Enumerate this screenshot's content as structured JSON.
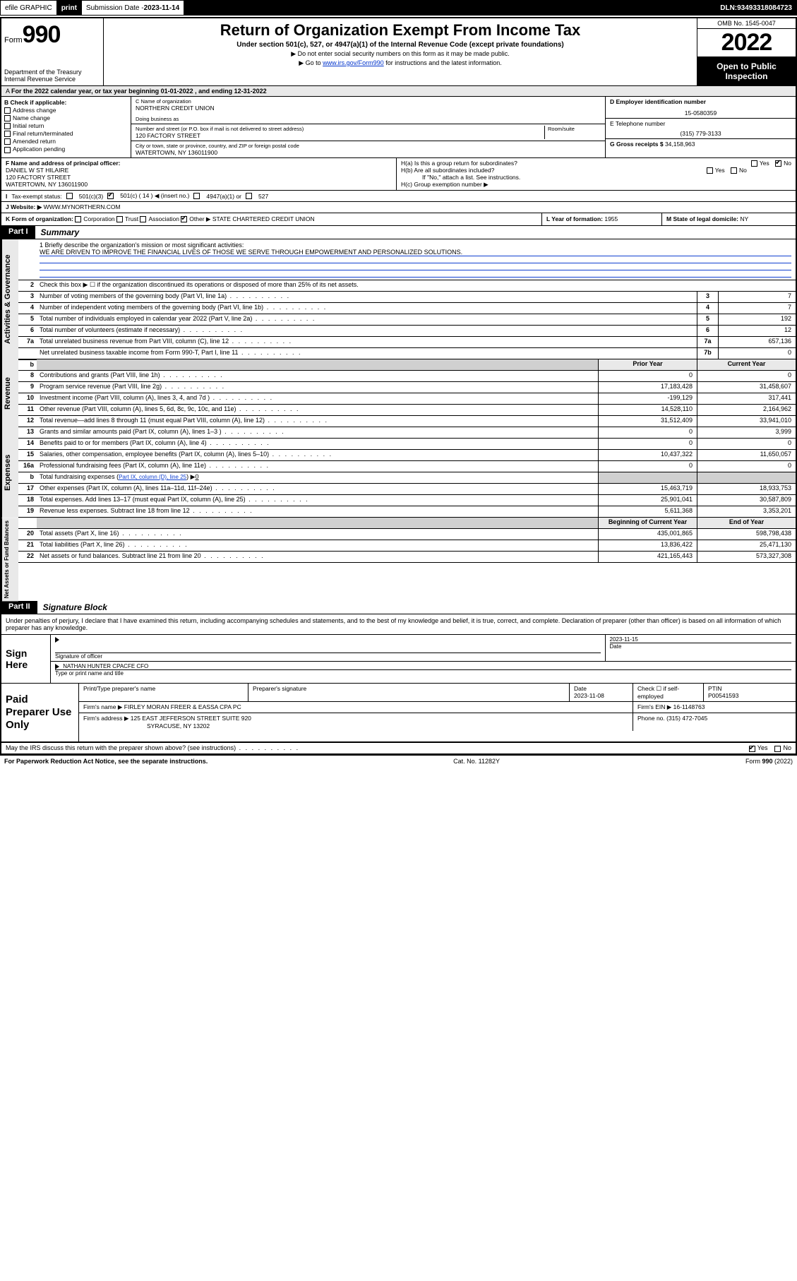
{
  "topbar": {
    "efile": "efile GRAPHIC",
    "print": "print",
    "sub_label": "Submission Date - ",
    "sub_date": "2023-11-14",
    "dln_label": "DLN: ",
    "dln": "93493318084723"
  },
  "header": {
    "form_word": "Form",
    "form_num": "990",
    "dept": "Department of the Treasury",
    "irs": "Internal Revenue Service",
    "title": "Return of Organization Exempt From Income Tax",
    "subtitle": "Under section 501(c), 527, or 4947(a)(1) of the Internal Revenue Code (except private foundations)",
    "note1": "▶ Do not enter social security numbers on this form as it may be made public.",
    "note2_pre": "▶ Go to ",
    "note2_link": "www.irs.gov/Form990",
    "note2_post": " for instructions and the latest information.",
    "omb": "OMB No. 1545-0047",
    "year": "2022",
    "open": "Open to Public Inspection"
  },
  "line_a": "For the 2022 calendar year, or tax year beginning 01-01-2022    , and ending 12-31-2022",
  "col_b": {
    "label": "B Check if applicable:",
    "opts": [
      "Address change",
      "Name change",
      "Initial return",
      "Final return/terminated",
      "Amended return",
      "Application pending"
    ]
  },
  "col_c": {
    "name_hint": "C Name of organization",
    "name": "NORTHERN CREDIT UNION",
    "dba_hint": "Doing business as",
    "addr_hint": "Number and street (or P.O. box if mail is not delivered to street address)",
    "room_hint": "Room/suite",
    "addr": "120 FACTORY STREET",
    "city_hint": "City or town, state or province, country, and ZIP or foreign postal code",
    "city": "WATERTOWN, NY  136011900"
  },
  "col_def": {
    "d_label": "D Employer identification number",
    "d_val": "15-0580359",
    "e_label": "E Telephone number",
    "e_val": "(315) 779-3133",
    "g_label": "G Gross receipts $ ",
    "g_val": "34,158,963"
  },
  "fgh": {
    "f_label": "F  Name and address of principal officer:",
    "f_name": "DANIEL W ST HILAIRE",
    "f_addr1": "120 FACTORY STREET",
    "f_addr2": "WATERTOWN, NY  136011900",
    "ha": "H(a)  Is this a group return for subordinates?",
    "hb": "H(b)  Are all subordinates included?",
    "hb_note": "If \"No,\" attach a list. See instructions.",
    "hc": "H(c)  Group exemption number ▶",
    "yes": "Yes",
    "no": "No"
  },
  "row_i": {
    "label": "Tax-exempt status:",
    "o1": "501(c)(3)",
    "o2a": "501(c) ( 14 ) ◀ (insert no.)",
    "o3": "4947(a)(1) or",
    "o4": "527"
  },
  "row_j": {
    "label": "J   Website: ▶",
    "val": "WWW.MYNORTHERN.COM"
  },
  "row_k": {
    "k_label": "K Form of organization:",
    "corp": "Corporation",
    "trust": "Trust",
    "assoc": "Association",
    "other": "Other ▶",
    "other_val": "STATE CHARTERED CREDIT UNION",
    "l": "L Year of formation: ",
    "l_val": "1955",
    "m": "M State of legal domicile: ",
    "m_val": "NY"
  },
  "part1": {
    "tag": "Part I",
    "title": "Summary"
  },
  "mission": {
    "prompt": "1  Briefly describe the organization's mission or most significant activities:",
    "text": "WE ARE DRIVEN TO IMPROVE THE FINANCIAL LIVES OF THOSE WE SERVE THROUGH EMPOWERMENT AND PERSONALIZED SOLUTIONS."
  },
  "gov_lines": [
    {
      "n": "2",
      "t": "Check this box ▶ ☐  if the organization discontinued its operations or disposed of more than 25% of its net assets.",
      "box": "",
      "val": ""
    },
    {
      "n": "3",
      "t": "Number of voting members of the governing body (Part VI, line 1a)",
      "box": "3",
      "val": "7"
    },
    {
      "n": "4",
      "t": "Number of independent voting members of the governing body (Part VI, line 1b)",
      "box": "4",
      "val": "7"
    },
    {
      "n": "5",
      "t": "Total number of individuals employed in calendar year 2022 (Part V, line 2a)",
      "box": "5",
      "val": "192"
    },
    {
      "n": "6",
      "t": "Total number of volunteers (estimate if necessary)",
      "box": "6",
      "val": "12"
    },
    {
      "n": "7a",
      "t": "Total unrelated business revenue from Part VIII, column (C), line 12",
      "box": "7a",
      "val": "657,136"
    },
    {
      "n": "",
      "t": "Net unrelated business taxable income from Form 990-T, Part I, line 11",
      "box": "7b",
      "val": "0"
    }
  ],
  "py_hdr": {
    "prior": "Prior Year",
    "curr": "Current Year"
  },
  "rev_lines": [
    {
      "n": "8",
      "t": "Contributions and grants (Part VIII, line 1h)",
      "p": "0",
      "c": "0"
    },
    {
      "n": "9",
      "t": "Program service revenue (Part VIII, line 2g)",
      "p": "17,183,428",
      "c": "31,458,607"
    },
    {
      "n": "10",
      "t": "Investment income (Part VIII, column (A), lines 3, 4, and 7d )",
      "p": "-199,129",
      "c": "317,441"
    },
    {
      "n": "11",
      "t": "Other revenue (Part VIII, column (A), lines 5, 6d, 8c, 9c, 10c, and 11e)",
      "p": "14,528,110",
      "c": "2,164,962"
    },
    {
      "n": "12",
      "t": "Total revenue—add lines 8 through 11 (must equal Part VIII, column (A), line 12)",
      "p": "31,512,409",
      "c": "33,941,010"
    }
  ],
  "exp_lines": [
    {
      "n": "13",
      "t": "Grants and similar amounts paid (Part IX, column (A), lines 1–3 )",
      "p": "0",
      "c": "3,999"
    },
    {
      "n": "14",
      "t": "Benefits paid to or for members (Part IX, column (A), line 4)",
      "p": "0",
      "c": "0"
    },
    {
      "n": "15",
      "t": "Salaries, other compensation, employee benefits (Part IX, column (A), lines 5–10)",
      "p": "10,437,322",
      "c": "11,650,057"
    },
    {
      "n": "16a",
      "t": "Professional fundraising fees (Part IX, column (A), line 11e)",
      "p": "0",
      "c": "0"
    },
    {
      "n": "b",
      "t": "Total fundraising expenses (Part IX, column (D), line 25) ▶0",
      "p": "",
      "c": "",
      "grey": true,
      "link": true
    },
    {
      "n": "17",
      "t": "Other expenses (Part IX, column (A), lines 11a–11d, 11f–24e)",
      "p": "15,463,719",
      "c": "18,933,753"
    },
    {
      "n": "18",
      "t": "Total expenses. Add lines 13–17 (must equal Part IX, column (A), line 25)",
      "p": "25,901,041",
      "c": "30,587,809"
    },
    {
      "n": "19",
      "t": "Revenue less expenses. Subtract line 18 from line 12",
      "p": "5,611,368",
      "c": "3,353,201"
    }
  ],
  "na_hdr": {
    "beg": "Beginning of Current Year",
    "end": "End of Year"
  },
  "na_lines": [
    {
      "n": "20",
      "t": "Total assets (Part X, line 16)",
      "p": "435,001,865",
      "c": "598,798,438"
    },
    {
      "n": "21",
      "t": "Total liabilities (Part X, line 26)",
      "p": "13,836,422",
      "c": "25,471,130"
    },
    {
      "n": "22",
      "t": "Net assets or fund balances. Subtract line 21 from line 20",
      "p": "421,165,443",
      "c": "573,327,308"
    }
  ],
  "vtabs": {
    "gov": "Activities & Governance",
    "rev": "Revenue",
    "exp": "Expenses",
    "na": "Net Assets or Fund Balances"
  },
  "part2": {
    "tag": "Part II",
    "title": "Signature Block"
  },
  "sig_text": "Under penalties of perjury, I declare that I have examined this return, including accompanying schedules and statements, and to the best of my knowledge and belief, it is true, correct, and complete. Declaration of preparer (other than officer) is based on all information of which preparer has any knowledge.",
  "sign": {
    "label": "Sign Here",
    "sig_of": "Signature of officer",
    "date_lbl": "Date",
    "date": "2023-11-15",
    "name": "NATHAN HUNTER CPACFE  CFO",
    "name_hint": "Type or print name and title"
  },
  "paid": {
    "label": "Paid Preparer Use Only",
    "h1": "Print/Type preparer's name",
    "h2": "Preparer's signature",
    "h3": "Date",
    "h3v": "2023-11-08",
    "h4": "Check ☐ if self-employed",
    "h5": "PTIN",
    "h5v": "P00541593",
    "firm_lbl": "Firm's name      ▶",
    "firm": "FIRLEY MORAN FREER & EASSA CPA PC",
    "ein_lbl": "Firm's EIN ▶",
    "ein": "16-1148763",
    "addr_lbl": "Firm's address ▶",
    "addr1": "125 EAST JEFFERSON STREET SUITE 920",
    "addr2": "SYRACUSE, NY  13202",
    "ph_lbl": "Phone no. ",
    "ph": "(315) 472-7045"
  },
  "discuss": {
    "q": "May the IRS discuss this return with the preparer shown above? (see instructions)",
    "yes": "Yes",
    "no": "No"
  },
  "footer": {
    "left": "For Paperwork Reduction Act Notice, see the separate instructions.",
    "mid": "Cat. No. 11282Y",
    "right": "Form 990 (2022)"
  }
}
